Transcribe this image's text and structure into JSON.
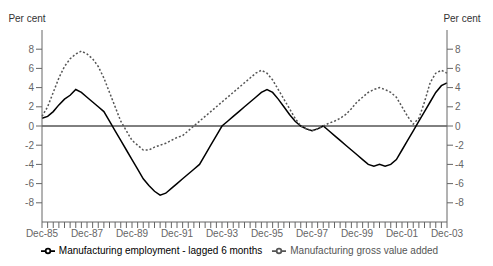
{
  "chart_data": {
    "type": "line",
    "y_label": "Per cent",
    "y2_label": "Per cent",
    "categories": [
      "Dec-85",
      null,
      null,
      null,
      null,
      null,
      null,
      null,
      "Dec-87",
      null,
      null,
      null,
      null,
      null,
      null,
      null,
      "Dec-89",
      null,
      null,
      null,
      null,
      null,
      null,
      null,
      "Dec-91",
      null,
      null,
      null,
      null,
      null,
      null,
      null,
      "Dec-93",
      null,
      null,
      null,
      null,
      null,
      null,
      null,
      "Dec-95",
      null,
      null,
      null,
      null,
      null,
      null,
      null,
      "Dec-97",
      null,
      null,
      null,
      null,
      null,
      null,
      null,
      "Dec-99",
      null,
      null,
      null,
      null,
      null,
      null,
      null,
      "Dec-01",
      null,
      null,
      null,
      null,
      null,
      null,
      null,
      "Dec-03"
    ],
    "series": [
      {
        "name": "Manufacturing employment - lagged 6 months",
        "color": "#000000",
        "line_style": "solid",
        "values": [
          0.8,
          1.0,
          1.5,
          2.2,
          2.8,
          3.2,
          3.8,
          3.5,
          3.0,
          2.5,
          2.0,
          1.5,
          0.5,
          -0.5,
          -1.5,
          -2.5,
          -3.5,
          -4.5,
          -5.5,
          -6.2,
          -6.8,
          -7.2,
          -7.0,
          -6.5,
          -6.0,
          -5.5,
          -5.0,
          -4.5,
          -4.0,
          -3.0,
          -2.0,
          -1.0,
          0.0,
          0.5,
          1.0,
          1.5,
          2.0,
          2.5,
          3.0,
          3.5,
          3.8,
          3.5,
          2.8,
          2.0,
          1.2,
          0.5,
          0.0,
          -0.3,
          -0.5,
          -0.3,
          0.0,
          -0.5,
          -1.0,
          -1.5,
          -2.0,
          -2.5,
          -3.0,
          -3.5,
          -4.0,
          -4.2,
          -4.0,
          -4.2,
          -4.0,
          -3.5,
          -2.5,
          -1.5,
          -0.5,
          0.5,
          1.5,
          2.5,
          3.5,
          4.2,
          4.5
        ]
      },
      {
        "name": "Manufacturing gross value added",
        "color": "#555555",
        "line_style": "dotted",
        "values": [
          1.0,
          2.0,
          3.5,
          5.0,
          6.2,
          7.0,
          7.5,
          7.8,
          7.5,
          7.0,
          6.2,
          5.0,
          3.5,
          2.0,
          0.5,
          -0.5,
          -1.5,
          -2.0,
          -2.5,
          -2.5,
          -2.2,
          -2.0,
          -1.8,
          -1.5,
          -1.2,
          -1.0,
          -0.5,
          0.0,
          0.5,
          1.0,
          1.5,
          2.0,
          2.5,
          3.0,
          3.5,
          4.0,
          4.5,
          5.0,
          5.5,
          5.8,
          5.5,
          4.8,
          3.8,
          2.8,
          1.8,
          0.8,
          0.0,
          -0.3,
          -0.5,
          -0.3,
          0.0,
          0.3,
          0.5,
          0.8,
          1.2,
          1.8,
          2.5,
          3.0,
          3.5,
          3.8,
          4.0,
          3.8,
          3.5,
          3.0,
          2.0,
          1.0,
          0.2,
          0.8,
          2.5,
          4.5,
          5.5,
          5.8,
          5.5
        ]
      }
    ],
    "ylim": [
      -10,
      10
    ],
    "yticks": [
      -8,
      -6,
      -4,
      -2,
      0,
      2,
      4,
      6,
      8
    ],
    "y2lim": [
      -10,
      10
    ],
    "y2ticks": [
      -8,
      -6,
      -4,
      -2,
      0,
      2,
      4,
      6,
      8
    ],
    "grid": false,
    "legend": "bottom"
  }
}
